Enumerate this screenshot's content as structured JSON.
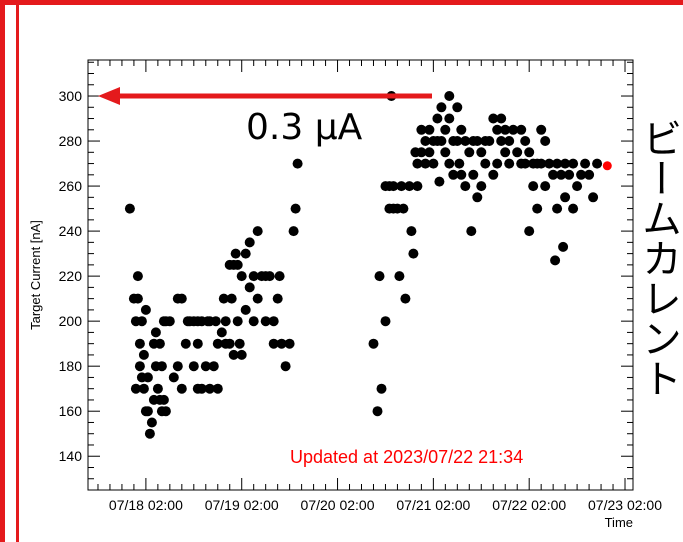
{
  "side_label": "ビームカレント",
  "colors": {
    "frame": "#e41a1c",
    "points": "#000000",
    "latest": "#ff0000",
    "arrow": "#e41a1c",
    "updated": "#ff0000"
  },
  "chart_data": {
    "type": "scatter",
    "title": "",
    "xlabel": "Time",
    "ylabel": "Target Current [nA]",
    "xlim": [
      "2023-07-17 11:30",
      "2023-07-23 04:00"
    ],
    "ylim": [
      125,
      316
    ],
    "grid": false,
    "x_ticks": [
      "07/18 02:00",
      "07/19 02:00",
      "07/20 02:00",
      "07/21 02:00",
      "07/22 02:00",
      "07/23 02:00"
    ],
    "y_ticks": [
      140,
      160,
      180,
      200,
      220,
      240,
      260,
      280,
      300
    ],
    "annotations": {
      "arrow_label": "0.3 μA",
      "arrow_value": 300,
      "updated_text": "Updated at 2023/07/22 21:34"
    },
    "series": [
      {
        "points": [
          [
            "07/17 22:00",
            250
          ],
          [
            "07/17 23:00",
            210
          ],
          [
            "07/17 23:30",
            200
          ],
          [
            "07/17 23:30",
            170
          ],
          [
            "07/18 00:00",
            220
          ],
          [
            "07/18 00:00",
            210
          ],
          [
            "07/18 00:30",
            190
          ],
          [
            "07/18 00:30",
            180
          ],
          [
            "07/18 01:00",
            200
          ],
          [
            "07/18 01:00",
            175
          ],
          [
            "07/18 01:30",
            185
          ],
          [
            "07/18 01:30",
            170
          ],
          [
            "07/18 02:00",
            205
          ],
          [
            "07/18 02:00",
            160
          ],
          [
            "07/18 02:30",
            175
          ],
          [
            "07/18 02:30",
            160
          ],
          [
            "07/18 03:00",
            150
          ],
          [
            "07/18 03:30",
            155
          ],
          [
            "07/18 04:00",
            190
          ],
          [
            "07/18 04:00",
            165
          ],
          [
            "07/18 04:30",
            195
          ],
          [
            "07/18 04:30",
            180
          ],
          [
            "07/18 05:00",
            170
          ],
          [
            "07/18 05:30",
            190
          ],
          [
            "07/18 05:30",
            165
          ],
          [
            "07/18 06:00",
            180
          ],
          [
            "07/18 06:00",
            160
          ],
          [
            "07/18 06:30",
            200
          ],
          [
            "07/18 06:30",
            165
          ],
          [
            "07/18 07:00",
            200
          ],
          [
            "07/18 07:00",
            160
          ],
          [
            "07/18 08:00",
            200
          ],
          [
            "07/18 09:00",
            175
          ],
          [
            "07/18 10:00",
            210
          ],
          [
            "07/18 10:00",
            180
          ],
          [
            "07/18 11:00",
            210
          ],
          [
            "07/18 11:00",
            170
          ],
          [
            "07/18 12:00",
            190
          ],
          [
            "07/18 12:30",
            200
          ],
          [
            "07/18 13:00",
            200
          ],
          [
            "07/18 14:00",
            200
          ],
          [
            "07/18 14:00",
            180
          ],
          [
            "07/18 15:00",
            200
          ],
          [
            "07/18 15:00",
            190
          ],
          [
            "07/18 15:00",
            170
          ],
          [
            "07/18 16:00",
            200
          ],
          [
            "07/18 16:00",
            170
          ],
          [
            "07/18 17:00",
            180
          ],
          [
            "07/18 17:30",
            200
          ],
          [
            "07/18 18:00",
            200
          ],
          [
            "07/18 18:00",
            170
          ],
          [
            "07/18 19:00",
            180
          ],
          [
            "07/18 19:30",
            200
          ],
          [
            "07/18 20:00",
            170
          ],
          [
            "07/18 20:00",
            190
          ],
          [
            "07/18 21:00",
            195
          ],
          [
            "07/18 21:30",
            210
          ],
          [
            "07/18 22:00",
            200
          ],
          [
            "07/18 22:00",
            190
          ],
          [
            "07/18 23:00",
            225
          ],
          [
            "07/18 23:00",
            190
          ],
          [
            "07/18 23:30",
            210
          ],
          [
            "07/19 00:00",
            225
          ],
          [
            "07/19 00:00",
            185
          ],
          [
            "07/19 00:30",
            230
          ],
          [
            "07/19 01:00",
            225
          ],
          [
            "07/19 01:00",
            200
          ],
          [
            "07/19 01:30",
            190
          ],
          [
            "07/19 02:00",
            220
          ],
          [
            "07/19 02:00",
            185
          ],
          [
            "07/19 03:00",
            230
          ],
          [
            "07/19 03:00",
            205
          ],
          [
            "07/19 04:00",
            235
          ],
          [
            "07/19 04:00",
            215
          ],
          [
            "07/19 05:00",
            220
          ],
          [
            "07/19 05:00",
            200
          ],
          [
            "07/19 06:00",
            240
          ],
          [
            "07/19 06:00",
            210
          ],
          [
            "07/19 07:00",
            220
          ],
          [
            "07/19 08:00",
            220
          ],
          [
            "07/19 08:00",
            200
          ],
          [
            "07/19 09:00",
            220
          ],
          [
            "07/19 10:00",
            200
          ],
          [
            "07/19 10:00",
            190
          ],
          [
            "07/19 11:00",
            210
          ],
          [
            "07/19 11:30",
            220
          ],
          [
            "07/19 12:00",
            190
          ],
          [
            "07/19 13:00",
            180
          ],
          [
            "07/19 14:00",
            190
          ],
          [
            "07/19 15:00",
            240
          ],
          [
            "07/19 15:30",
            250
          ],
          [
            "07/19 16:00",
            270
          ],
          [
            "07/20 11:00",
            190
          ],
          [
            "07/20 12:00",
            160
          ],
          [
            "07/20 12:30",
            220
          ],
          [
            "07/20 13:00",
            170
          ],
          [
            "07/20 14:00",
            260
          ],
          [
            "07/20 14:00",
            200
          ],
          [
            "07/20 15:00",
            260
          ],
          [
            "07/20 15:00",
            250
          ],
          [
            "07/20 15:30",
            300
          ],
          [
            "07/20 16:00",
            260
          ],
          [
            "07/20 16:00",
            250
          ],
          [
            "07/20 17:00",
            250
          ],
          [
            "07/20 17:30",
            220
          ],
          [
            "07/20 18:00",
            260
          ],
          [
            "07/20 18:30",
            250
          ],
          [
            "07/20 19:00",
            210
          ],
          [
            "07/20 20:00",
            260
          ],
          [
            "07/20 20:30",
            240
          ],
          [
            "07/20 21:00",
            230
          ],
          [
            "07/20 21:30",
            275
          ],
          [
            "07/20 22:00",
            270
          ],
          [
            "07/20 22:00",
            260
          ],
          [
            "07/20 23:00",
            285
          ],
          [
            "07/20 23:00",
            275
          ],
          [
            "07/21 00:00",
            280
          ],
          [
            "07/21 00:00",
            270
          ],
          [
            "07/21 01:00",
            285
          ],
          [
            "07/21 01:00",
            275
          ],
          [
            "07/21 02:00",
            280
          ],
          [
            "07/21 02:00",
            270
          ],
          [
            "07/21 03:00",
            290
          ],
          [
            "07/21 03:00",
            280
          ],
          [
            "07/21 03:30",
            262
          ],
          [
            "07/21 04:00",
            295
          ],
          [
            "07/21 04:00",
            280
          ],
          [
            "07/21 05:00",
            285
          ],
          [
            "07/21 05:00",
            275
          ],
          [
            "07/21 06:00",
            300
          ],
          [
            "07/21 06:00",
            290
          ],
          [
            "07/21 06:00",
            270
          ],
          [
            "07/21 07:00",
            280
          ],
          [
            "07/21 07:00",
            265
          ],
          [
            "07/21 08:00",
            295
          ],
          [
            "07/21 08:00",
            280
          ],
          [
            "07/21 08:30",
            270
          ],
          [
            "07/21 09:00",
            285
          ],
          [
            "07/21 09:00",
            265
          ],
          [
            "07/21 10:00",
            280
          ],
          [
            "07/21 10:00",
            260
          ],
          [
            "07/21 11:00",
            275
          ],
          [
            "07/21 11:30",
            240
          ],
          [
            "07/21 12:00",
            280
          ],
          [
            "07/21 12:00",
            265
          ],
          [
            "07/21 13:00",
            280
          ],
          [
            "07/21 13:00",
            255
          ],
          [
            "07/21 14:00",
            275
          ],
          [
            "07/21 14:00",
            260
          ],
          [
            "07/21 15:00",
            280
          ],
          [
            "07/21 15:00",
            270
          ],
          [
            "07/21 16:00",
            280
          ],
          [
            "07/21 17:00",
            290
          ],
          [
            "07/21 17:00",
            265
          ],
          [
            "07/21 18:00",
            285
          ],
          [
            "07/21 18:00",
            270
          ],
          [
            "07/21 19:00",
            290
          ],
          [
            "07/21 19:00",
            280
          ],
          [
            "07/21 20:00",
            285
          ],
          [
            "07/21 20:00",
            275
          ],
          [
            "07/21 21:00",
            280
          ],
          [
            "07/21 21:00",
            270
          ],
          [
            "07/21 22:00",
            285
          ],
          [
            "07/21 23:00",
            275
          ],
          [
            "07/22 00:00",
            285
          ],
          [
            "07/22 00:00",
            270
          ],
          [
            "07/22 01:00",
            280
          ],
          [
            "07/22 01:00",
            270
          ],
          [
            "07/22 02:00",
            275
          ],
          [
            "07/22 02:00",
            240
          ],
          [
            "07/22 03:00",
            270
          ],
          [
            "07/22 03:00",
            260
          ],
          [
            "07/22 04:00",
            270
          ],
          [
            "07/22 04:00",
            250
          ],
          [
            "07/22 05:00",
            285
          ],
          [
            "07/22 05:00",
            270
          ],
          [
            "07/22 06:00",
            280
          ],
          [
            "07/22 06:00",
            260
          ],
          [
            "07/22 07:00",
            270
          ],
          [
            "07/22 08:00",
            265
          ],
          [
            "07/22 08:30",
            227
          ],
          [
            "07/22 09:00",
            270
          ],
          [
            "07/22 09:00",
            250
          ],
          [
            "07/22 10:00",
            265
          ],
          [
            "07/22 10:30",
            233
          ],
          [
            "07/22 11:00",
            270
          ],
          [
            "07/22 11:00",
            255
          ],
          [
            "07/22 12:00",
            265
          ],
          [
            "07/22 13:00",
            270
          ],
          [
            "07/22 13:00",
            250
          ],
          [
            "07/22 14:00",
            260
          ],
          [
            "07/22 15:00",
            265
          ],
          [
            "07/22 16:00",
            270
          ],
          [
            "07/22 17:00",
            265
          ],
          [
            "07/22 18:00",
            255
          ],
          [
            "07/22 19:00",
            270
          ]
        ],
        "latest_point": [
          "07/22 21:34",
          269
        ]
      }
    ]
  }
}
